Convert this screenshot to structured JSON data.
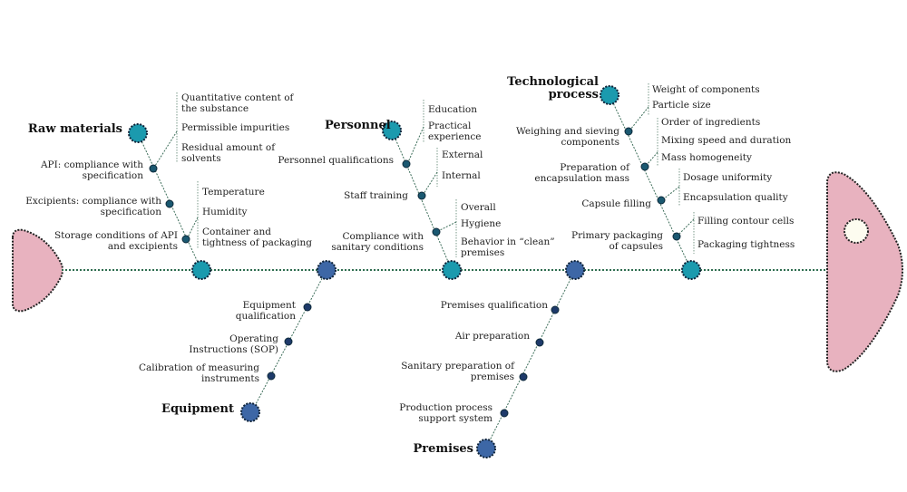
{
  "colors": {
    "teal": "#1b9aae",
    "blue": "#3d67a6",
    "dark_teal": "#1a5870",
    "dark_blue": "#1e3a6a",
    "fish": "#e8b2bf",
    "spine": "#2f6e50"
  },
  "raw_materials": {
    "title": "Raw materials",
    "causes": [
      {
        "label_lines": [
          "API: compliance with",
          "specification"
        ]
      },
      {
        "label_lines": [
          "Excipients: compliance with",
          "specification"
        ]
      },
      {
        "label_lines": [
          "Storage conditions of API",
          "and excipients"
        ]
      }
    ],
    "sub_api": [
      [
        "Quantitative content of",
        "the substance"
      ],
      [
        "Permissible impurities"
      ],
      [
        "Residual amount of",
        "solvents"
      ]
    ],
    "sub_storage": [
      [
        "Temperature"
      ],
      [
        "Humidity"
      ],
      [
        "Container and",
        "tightness of packaging"
      ]
    ]
  },
  "personnel": {
    "title": "Personnel",
    "causes": [
      {
        "label_lines": [
          "Personnel qualifications"
        ]
      },
      {
        "label_lines": [
          "Staff training"
        ]
      },
      {
        "label_lines": [
          "Compliance with",
          "sanitary conditions"
        ]
      }
    ],
    "sub_qualifications": [
      [
        "Education"
      ],
      [
        "Practical",
        "experience"
      ]
    ],
    "sub_training": [
      [
        "External"
      ],
      [
        "Internal"
      ]
    ],
    "sub_sanitary": [
      [
        "Overall"
      ],
      [
        "Hygiene"
      ],
      [
        "Behavior in “clean”",
        "premises"
      ]
    ]
  },
  "technological_process": {
    "title_lines": [
      "Technological",
      "process"
    ],
    "causes": [
      {
        "label_lines": [
          "Weighing and sieving",
          "components"
        ]
      },
      {
        "label_lines": [
          "Preparation of",
          "encapsulation mass"
        ]
      },
      {
        "label_lines": [
          "Capsule filling"
        ]
      },
      {
        "label_lines": [
          "Primary packaging",
          "of capsules"
        ]
      }
    ],
    "sub_weighing": [
      [
        "Weight of components"
      ],
      [
        "Particle size"
      ]
    ],
    "sub_mass": [
      [
        "Order of ingredients"
      ],
      [
        "Mixing speed and duration"
      ],
      [
        "Mass homogeneity"
      ]
    ],
    "sub_filling": [
      [
        "Dosage uniformity"
      ],
      [
        "Encapsulation quality"
      ]
    ],
    "sub_packaging": [
      [
        "Filling contour cells"
      ],
      [
        "Packaging tightness"
      ]
    ]
  },
  "equipment": {
    "title": "Equipment",
    "causes": [
      {
        "label_lines": [
          "Equipment",
          "qualification"
        ]
      },
      {
        "label_lines": [
          "Operating",
          "Instructions (SOP)"
        ]
      },
      {
        "label_lines": [
          "Calibration of measuring",
          "instruments"
        ]
      }
    ]
  },
  "premises": {
    "title": "Premises",
    "causes": [
      {
        "label_lines": [
          "Premises qualification"
        ]
      },
      {
        "label_lines": [
          "Air preparation"
        ]
      },
      {
        "label_lines": [
          "Sanitary preparation of",
          "premises"
        ]
      },
      {
        "label_lines": [
          "Production process",
          "support system"
        ]
      }
    ]
  }
}
